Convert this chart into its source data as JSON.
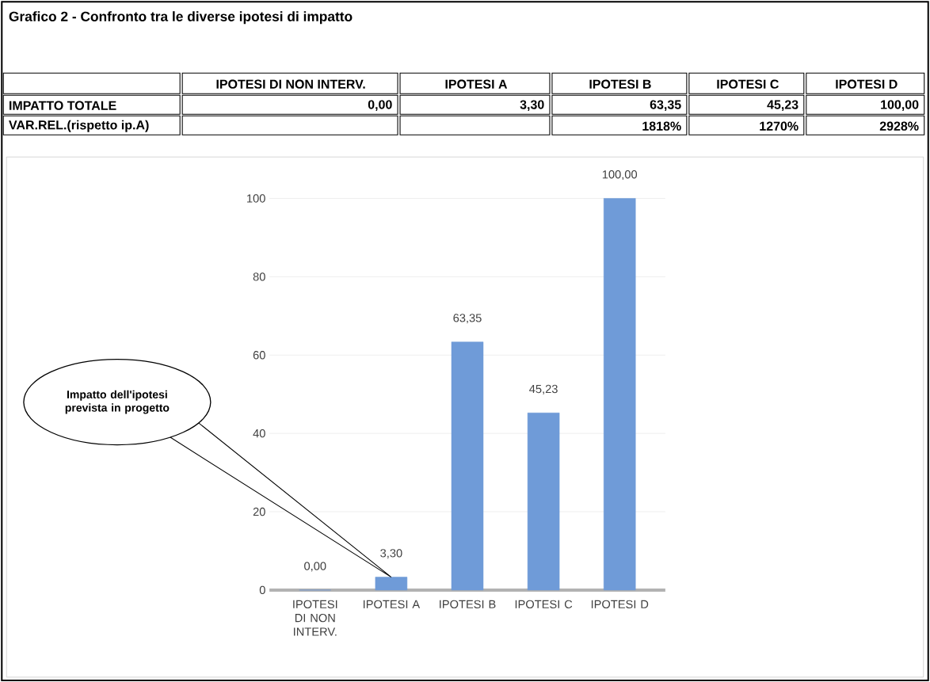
{
  "chart_data": {
    "type": "bar",
    "title": "Grafico 2 - Confronto tra le diverse ipotesi di impatto",
    "categories": [
      "IPOTESI DI NON INTERV.",
      "IPOTESI A",
      "IPOTESI B",
      "IPOTESI C",
      "IPOTESI D"
    ],
    "values": [
      0,
      3.3,
      63.35,
      45.23,
      100
    ],
    "value_labels": [
      "0,00",
      "3,30",
      "63,35",
      "45,23",
      "100,00"
    ],
    "color": "#6f9bd8",
    "ylim": [
      0,
      100
    ],
    "yticks": [
      0,
      20,
      40,
      60,
      80,
      100
    ],
    "grid": "y",
    "annotations": [
      "Impatto dell'ipotesi prevista in progetto",
      "IMPATTO TOTALE",
      "VAR.REL.(rispetto ip.A)",
      "1818%",
      "1270%",
      "2928%"
    ]
  }
}
